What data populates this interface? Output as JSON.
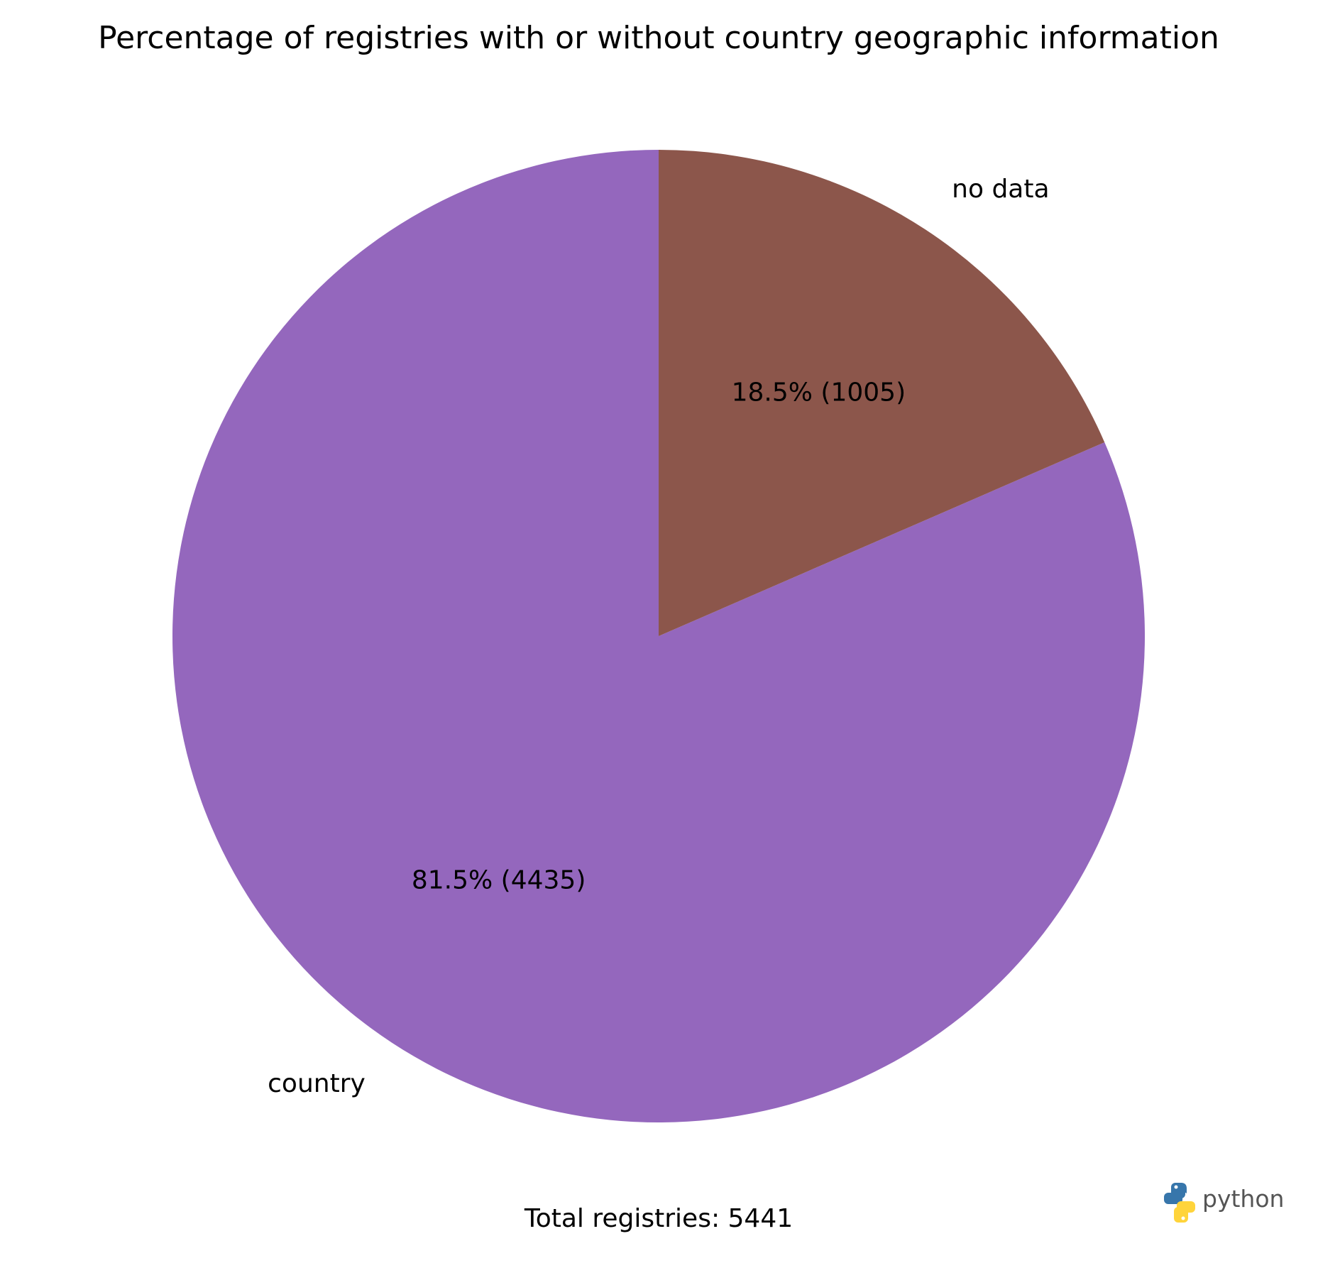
{
  "chart_data": {
    "type": "pie",
    "title": "Percentage of registries with or without country geographic information",
    "slices": [
      {
        "label": "country",
        "value": 4435,
        "percent": 81.5,
        "pct_label": "81.5% (4435)",
        "color": "#9467bd"
      },
      {
        "label": "no data",
        "value": 1005,
        "percent": 18.5,
        "pct_label": "18.5% (1005)",
        "color": "#8c564b"
      }
    ],
    "start_angle_deg": 90,
    "direction": "counterclockwise"
  },
  "footer": {
    "total_text": "Total registries: 5441"
  },
  "logo": {
    "text": "python",
    "icon": "python-logo-icon",
    "colors": [
      "#3776ab",
      "#ffd43b"
    ]
  }
}
